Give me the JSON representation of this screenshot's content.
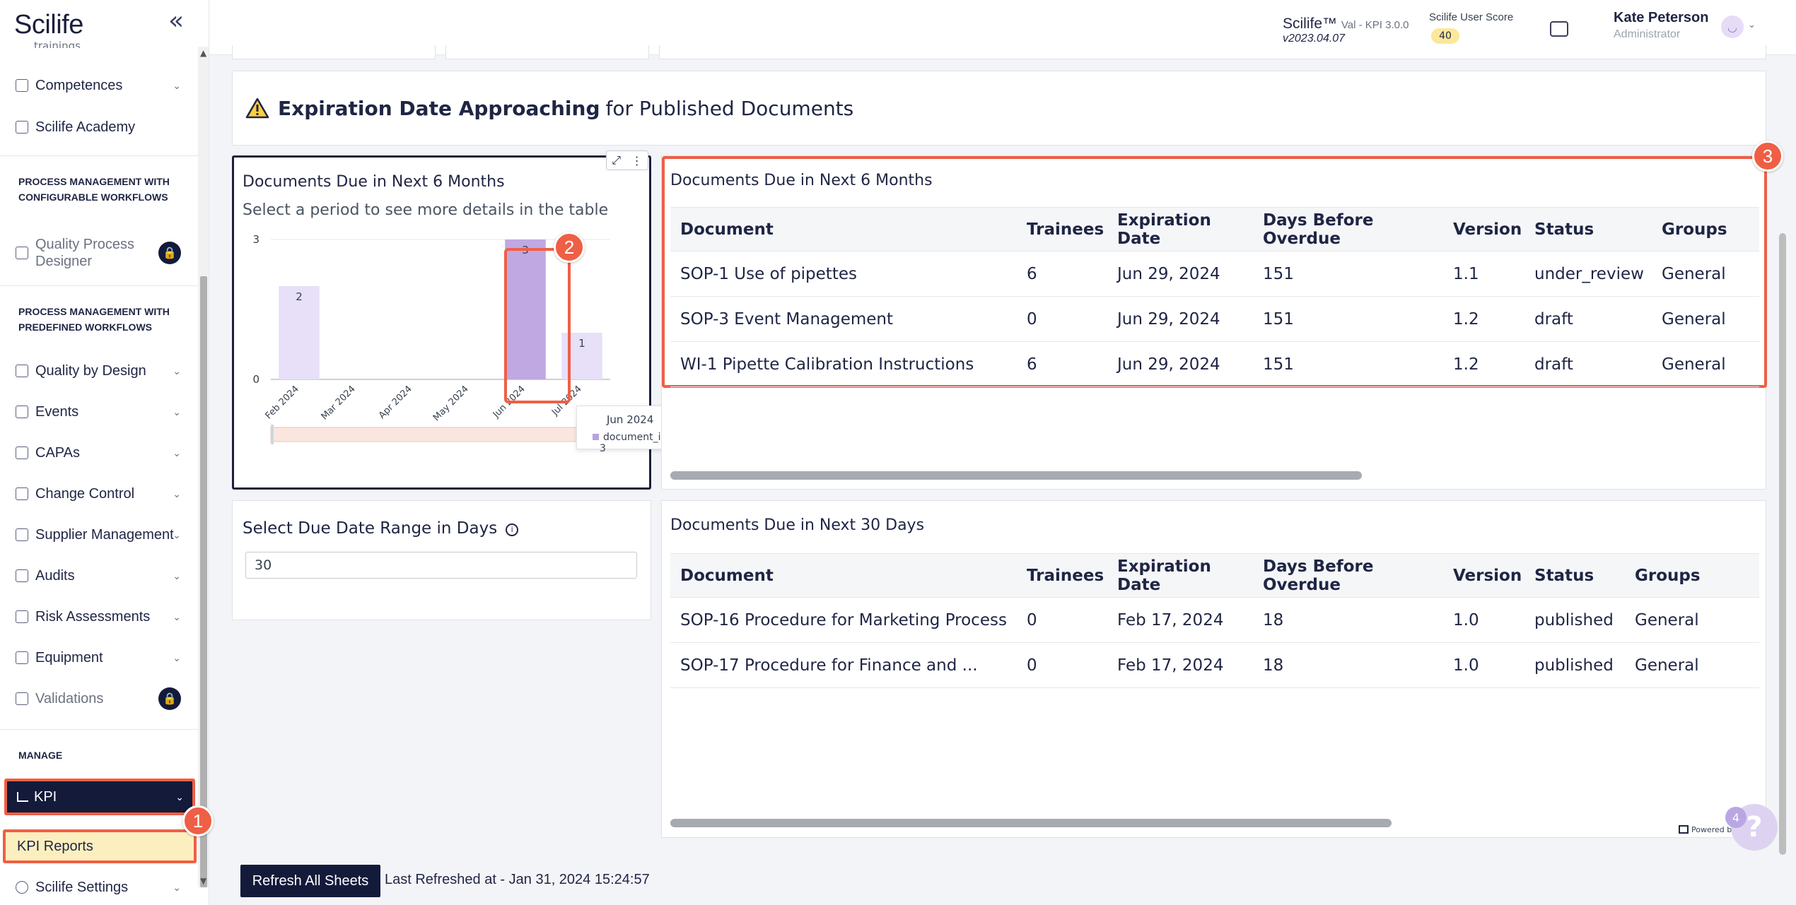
{
  "sidebar": {
    "logo": "Scilife",
    "cut_text": "trainings",
    "items_top": [
      {
        "label": "Competences",
        "icon": "competences-icon",
        "chevron": true
      },
      {
        "label": "Scilife Academy",
        "icon": "academy-icon",
        "chevron": false
      }
    ],
    "section_configurable": "PROCESS MANAGEMENT WITH CONFIGURABLE WORKFLOWS",
    "quality_process_designer": "Quality Process Designer",
    "section_predefined": "PROCESS MANAGEMENT WITH PREDEFINED WORKFLOWS",
    "items_predefined": [
      {
        "label": "Quality by Design"
      },
      {
        "label": "Events"
      },
      {
        "label": "CAPAs"
      },
      {
        "label": "Change Control"
      },
      {
        "label": "Supplier Management"
      },
      {
        "label": "Audits"
      },
      {
        "label": "Risk Assessments"
      },
      {
        "label": "Equipment"
      }
    ],
    "validations": "Validations",
    "section_manage": "MANAGE",
    "kpi": "KPI",
    "kpi_reports": "KPI Reports",
    "settings": "Scilife Settings",
    "lock_badge": "🔒"
  },
  "header": {
    "app_name": "Scilife™",
    "app_env": "Val - KPI 3.0.0",
    "version": "v2023.04.07",
    "score_label": "Scilife User Score",
    "score_value": "40",
    "user_name": "Kate Peterson",
    "user_role": "Administrator"
  },
  "section": {
    "title_bold": "Expiration Date Approaching",
    "title_rest": "for Published Documents"
  },
  "chart_panel": {
    "title": "Documents Due in Next 6 Months",
    "subtitle": "Select a period to see more details in the table"
  },
  "chart_data": {
    "type": "bar",
    "categories": [
      "Feb 2024",
      "Mar 2024",
      "Apr 2024",
      "May 2024",
      "Jun 2024",
      "Jul 2024"
    ],
    "values": [
      2,
      0,
      0,
      0,
      3,
      1
    ],
    "y_ticks": [
      "0",
      "3"
    ],
    "ylim": [
      0,
      3
    ],
    "highlighted_category": "Jun 2024",
    "bar_color": "#e7e0f8",
    "highlight_color": "#c0a8e3"
  },
  "tooltip": {
    "title": "Jun 2024",
    "series": "document_id (Count distinct)",
    "value": "3"
  },
  "table6": {
    "title": "Documents Due in Next 6 Months",
    "columns": [
      "Document",
      "Trainees",
      "Expiration Date",
      "Days Before Overdue",
      "Version",
      "Status",
      "Groups"
    ],
    "rows": [
      [
        "SOP-1 Use of pipettes",
        "6",
        "Jun 29, 2024",
        "151",
        "1.1",
        "under_review",
        "General"
      ],
      [
        "SOP-3 Event Management",
        "0",
        "Jun 29, 2024",
        "151",
        "1.2",
        "draft",
        "General"
      ],
      [
        "WI-1 Pipette Calibration Instructions",
        "6",
        "Jun 29, 2024",
        "151",
        "1.2",
        "draft",
        "General"
      ]
    ]
  },
  "range": {
    "title": "Select Due Date Range in Days",
    "value": "30"
  },
  "table30": {
    "title": "Documents Due in Next 30 Days",
    "columns": [
      "Document",
      "Trainees",
      "Expiration Date",
      "Days Before Overdue",
      "Version",
      "Status",
      "Groups"
    ],
    "rows": [
      [
        "SOP-16 Procedure for Marketing Process",
        "0",
        "Feb 17, 2024",
        "18",
        "1.0",
        "published",
        "General"
      ],
      [
        "SOP-17 Procedure for Finance and ...",
        "0",
        "Feb 17, 2024",
        "18",
        "1.0",
        "published",
        "General"
      ]
    ]
  },
  "footer": {
    "refresh_label": "Refresh All Sheets",
    "last_refreshed": "Last Refreshed at - Jan 31, 2024 15:24:57",
    "powered_by": "Powered by",
    "help_badge": "4",
    "help_label": "?"
  },
  "callouts": [
    "1",
    "2",
    "3"
  ],
  "colors": {
    "navy": "#141a3a",
    "callout": "#ef5f45",
    "highlight_bg": "#fbefbf"
  }
}
